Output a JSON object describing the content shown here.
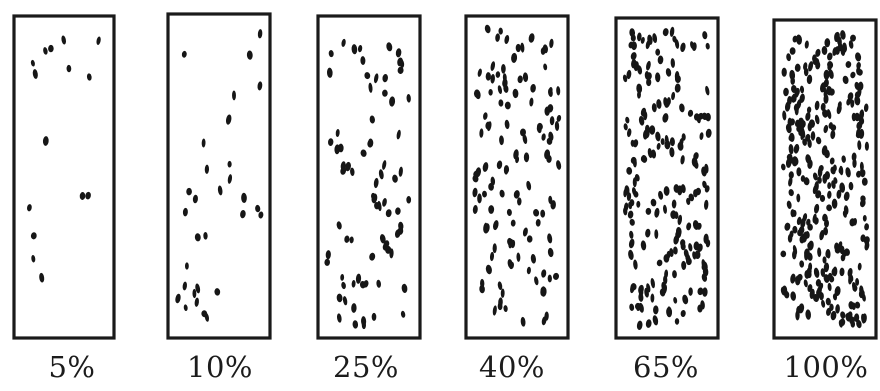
{
  "figure": {
    "panels": [
      {
        "label": "5%",
        "density": 0.05
      },
      {
        "label": "10%",
        "density": 0.1
      },
      {
        "label": "25%",
        "density": 0.25
      },
      {
        "label": "40%",
        "density": 0.4
      },
      {
        "label": "65%",
        "density": 0.65
      },
      {
        "label": "100%",
        "density": 1.0
      }
    ],
    "colors": {
      "ink": "#161616",
      "background": "#ffffff"
    }
  }
}
